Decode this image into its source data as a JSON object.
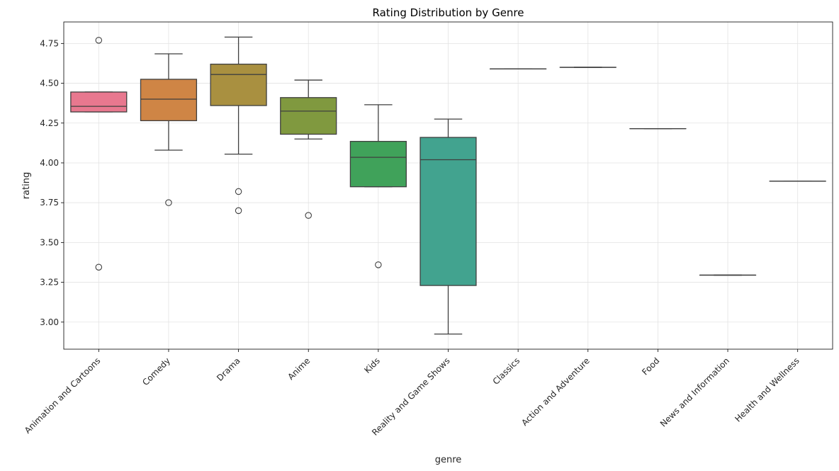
{
  "chart_data": {
    "type": "box",
    "title": "Rating Distribution by Genre",
    "xlabel": "genre",
    "ylabel": "rating",
    "ylim": [
      2.83,
      4.885
    ],
    "yticks": [
      "3.00",
      "3.25",
      "3.50",
      "3.75",
      "4.00",
      "4.25",
      "4.50",
      "4.75"
    ],
    "grid": true,
    "categories": [
      "Animation and Cartoons",
      "Comedy",
      "Drama",
      "Anime",
      "Kids",
      "Reality and Game Shows",
      "Classics",
      "Action and Adventure",
      "Food",
      "News and Information",
      "Health and Wellness"
    ],
    "boxes": [
      {
        "q1": 4.32,
        "median": 4.355,
        "q3": 4.445,
        "whislo": 4.32,
        "whishi": 4.445,
        "fliers": [
          4.77,
          3.345
        ],
        "color": "#e8788f"
      },
      {
        "q1": 4.265,
        "median": 4.4,
        "q3": 4.525,
        "whislo": 4.08,
        "whishi": 4.685,
        "fliers": [
          3.75
        ],
        "color": "#cf8545"
      },
      {
        "q1": 4.36,
        "median": 4.555,
        "q3": 4.62,
        "whislo": 4.055,
        "whishi": 4.79,
        "fliers": [
          3.82,
          3.7
        ],
        "color": "#a99040"
      },
      {
        "q1": 4.18,
        "median": 4.325,
        "q3": 4.41,
        "whislo": 4.15,
        "whishi": 4.52,
        "fliers": [
          3.67
        ],
        "color": "#80993f"
      },
      {
        "q1": 3.85,
        "median": 4.035,
        "q3": 4.135,
        "whislo": 3.85,
        "whishi": 4.365,
        "fliers": [
          3.36
        ],
        "color": "#40a25a"
      },
      {
        "q1": 3.23,
        "median": 4.02,
        "q3": 4.16,
        "whislo": 2.925,
        "whishi": 4.275,
        "fliers": [],
        "color": "#42a38f"
      },
      {
        "q1": 4.59,
        "median": 4.59,
        "q3": 4.59,
        "whislo": 4.59,
        "whishi": 4.59,
        "fliers": [],
        "color": "#45a09e"
      },
      {
        "q1": 4.6,
        "median": 4.6,
        "q3": 4.6,
        "whislo": 4.6,
        "whishi": 4.6,
        "fliers": [],
        "color": "#47a0b0"
      },
      {
        "q1": 4.215,
        "median": 4.215,
        "q3": 4.215,
        "whislo": 4.215,
        "whishi": 4.215,
        "fliers": [],
        "color": "#56a3d0"
      },
      {
        "q1": 3.295,
        "median": 3.295,
        "q3": 3.295,
        "whislo": 3.295,
        "whishi": 3.295,
        "fliers": [],
        "color": "#9aa8e0"
      },
      {
        "q1": 3.885,
        "median": 3.885,
        "q3": 3.885,
        "whislo": 3.885,
        "whishi": 3.885,
        "fliers": [],
        "color": "#cf99e0"
      }
    ],
    "colors": {
      "axis": "#000000",
      "grid": "#e3e3e3",
      "line": "#3f3f3f"
    }
  }
}
